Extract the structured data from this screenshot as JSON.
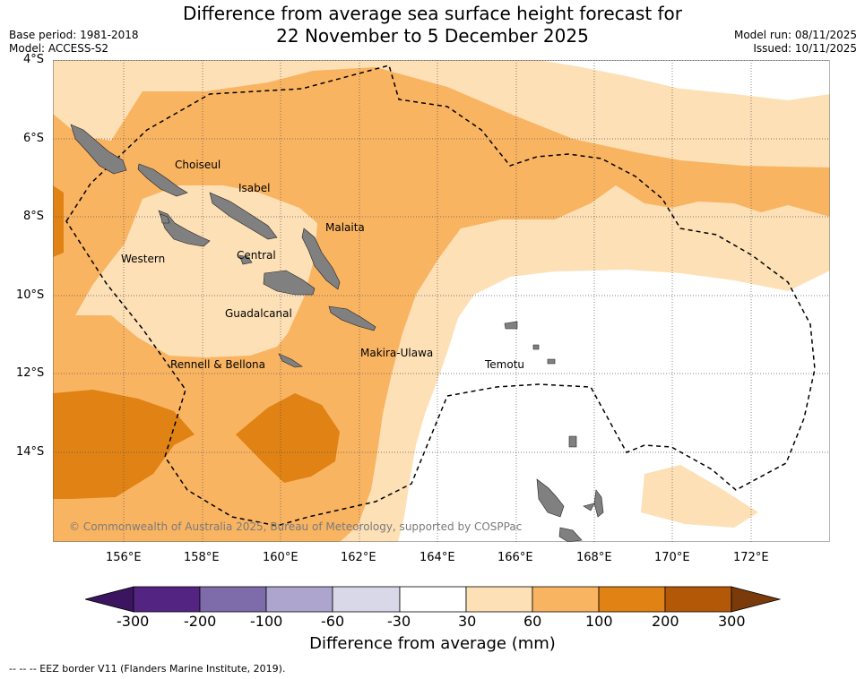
{
  "title_line1": "Difference from average sea surface height forecast for",
  "title_line2": "22 November to 5 December 2025",
  "meta_left": {
    "base_period": "Base period: 1981-2018",
    "model": "Model: ACCESS-S2"
  },
  "meta_right": {
    "model_run": "Model run: 08/11/2025",
    "issued": "Issued: 10/11/2025"
  },
  "lat_labels": [
    "4°S",
    "6°S",
    "8°S",
    "10°S",
    "12°S",
    "14°S"
  ],
  "lon_labels": [
    "156°E",
    "158°E",
    "160°E",
    "162°E",
    "164°E",
    "166°E",
    "168°E",
    "170°E",
    "172°E"
  ],
  "provinces": [
    "Choiseul",
    "Isabel",
    "Malaita",
    "Western",
    "Central",
    "Guadalcanal",
    "Makira-Ulawa",
    "Rennell & Bellona",
    "Temotu"
  ],
  "copyright": "© Commonwealth of Australia 2025, Bureau of Meteorology, supported by COSPPac",
  "colorbar": {
    "ticks": [
      "-300",
      "-200",
      "-100",
      "-60",
      "-30",
      "30",
      "60",
      "100",
      "200",
      "300"
    ],
    "colors": [
      "#4b1a7a",
      "#542483",
      "#7e6ba9",
      "#aea5ce",
      "#d8d8e8",
      "#ffffff",
      "#fde0b6",
      "#f9b462",
      "#e08214",
      "#b35807",
      "#7a3a0a"
    ],
    "title": "Difference from average (mm)"
  },
  "footnote": "--  --  -- EEZ border V11 (Flanders Marine Institute, 2019)."
}
